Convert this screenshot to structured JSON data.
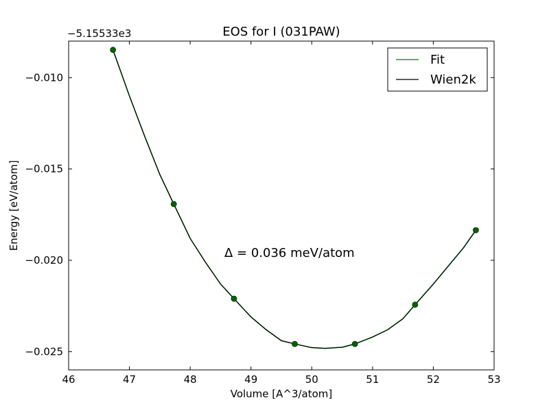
{
  "chart_data": {
    "type": "line",
    "title": "EOS for I (031PAW)",
    "xlabel": "Volume [A^3/atom]",
    "ylabel": "Energy [eV/atom]",
    "y_offset_label": "−5.15533e3",
    "xlim": [
      46,
      53
    ],
    "ylim": [
      -0.026,
      -0.008
    ],
    "x_ticks": [
      46,
      47,
      48,
      49,
      50,
      51,
      52,
      53
    ],
    "x_tick_labels": [
      "46",
      "47",
      "48",
      "49",
      "50",
      "51",
      "52",
      "53"
    ],
    "y_ticks": [
      -0.01,
      -0.015,
      -0.02,
      -0.025
    ],
    "y_tick_labels": [
      "−0.010",
      "−0.015",
      "−0.020",
      "−0.025"
    ],
    "annotation": "Δ = 0.036 meV/atom",
    "legend_position": "top-right",
    "points": {
      "x": [
        46.73,
        47.73,
        48.72,
        49.72,
        50.71,
        51.7,
        52.7
      ],
      "y": [
        -0.00848,
        -0.01692,
        -0.0221,
        -0.02458,
        -0.02458,
        -0.02243,
        -0.01835
      ],
      "color": "#006400"
    },
    "series": [
      {
        "name": "Fit",
        "color": "#008000",
        "x": [
          46.73,
          47.0,
          47.25,
          47.5,
          47.73,
          48.0,
          48.25,
          48.5,
          48.72,
          49.0,
          49.25,
          49.5,
          49.72,
          50.0,
          50.22,
          50.5,
          50.71,
          51.0,
          51.25,
          51.5,
          51.7,
          52.0,
          52.25,
          52.5,
          52.7
        ],
        "y": [
          -0.00848,
          -0.011,
          -0.0132,
          -0.0153,
          -0.01692,
          -0.0188,
          -0.0201,
          -0.0213,
          -0.0221,
          -0.0231,
          -0.0238,
          -0.0244,
          -0.02458,
          -0.02478,
          -0.02482,
          -0.02476,
          -0.02458,
          -0.0242,
          -0.0238,
          -0.0232,
          -0.02243,
          -0.0213,
          -0.0203,
          -0.0193,
          -0.01835
        ]
      },
      {
        "name": "Wien2k",
        "color": "#000000",
        "x": [
          46.73,
          47.0,
          47.25,
          47.5,
          47.73,
          48.0,
          48.25,
          48.5,
          48.72,
          49.0,
          49.25,
          49.5,
          49.72,
          50.0,
          50.22,
          50.5,
          50.71,
          51.0,
          51.25,
          51.5,
          51.7,
          52.0,
          52.25,
          52.5,
          52.7
        ],
        "y": [
          -0.00848,
          -0.011,
          -0.0132,
          -0.0153,
          -0.01692,
          -0.0188,
          -0.0201,
          -0.0213,
          -0.0221,
          -0.0231,
          -0.0238,
          -0.0244,
          -0.02458,
          -0.02478,
          -0.02482,
          -0.02476,
          -0.02458,
          -0.0242,
          -0.0238,
          -0.0232,
          -0.02243,
          -0.0213,
          -0.0203,
          -0.0193,
          -0.01835
        ]
      }
    ]
  }
}
